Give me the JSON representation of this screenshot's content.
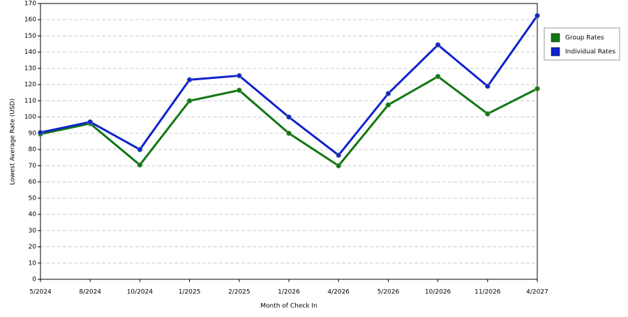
{
  "chart_data": {
    "type": "line",
    "x_label": "Month of Check In",
    "y_label": "Lowest Average Rate (USD)",
    "categories": [
      "5/2024",
      "8/2024",
      "10/2024",
      "1/2025",
      "2/2025",
      "1/2026",
      "4/2026",
      "5/2026",
      "10/2026",
      "11/2026",
      "4/2027"
    ],
    "series": [
      {
        "name": "Group Rates",
        "color": "#117711",
        "values": [
          89.5,
          96,
          70.5,
          110,
          116.5,
          90,
          70,
          107.5,
          125,
          102,
          117.5
        ]
      },
      {
        "name": "Individual Rates",
        "color": "#1122cc",
        "values": [
          90.5,
          97,
          80,
          123,
          125.5,
          100,
          76.5,
          114.5,
          144.5,
          119,
          162.5
        ]
      }
    ],
    "ylim": [
      0,
      170
    ],
    "yticks": [
      0,
      10,
      20,
      30,
      40,
      50,
      60,
      70,
      80,
      90,
      100,
      110,
      120,
      130,
      140,
      150,
      160,
      170
    ],
    "grid": true,
    "legend": "right"
  }
}
